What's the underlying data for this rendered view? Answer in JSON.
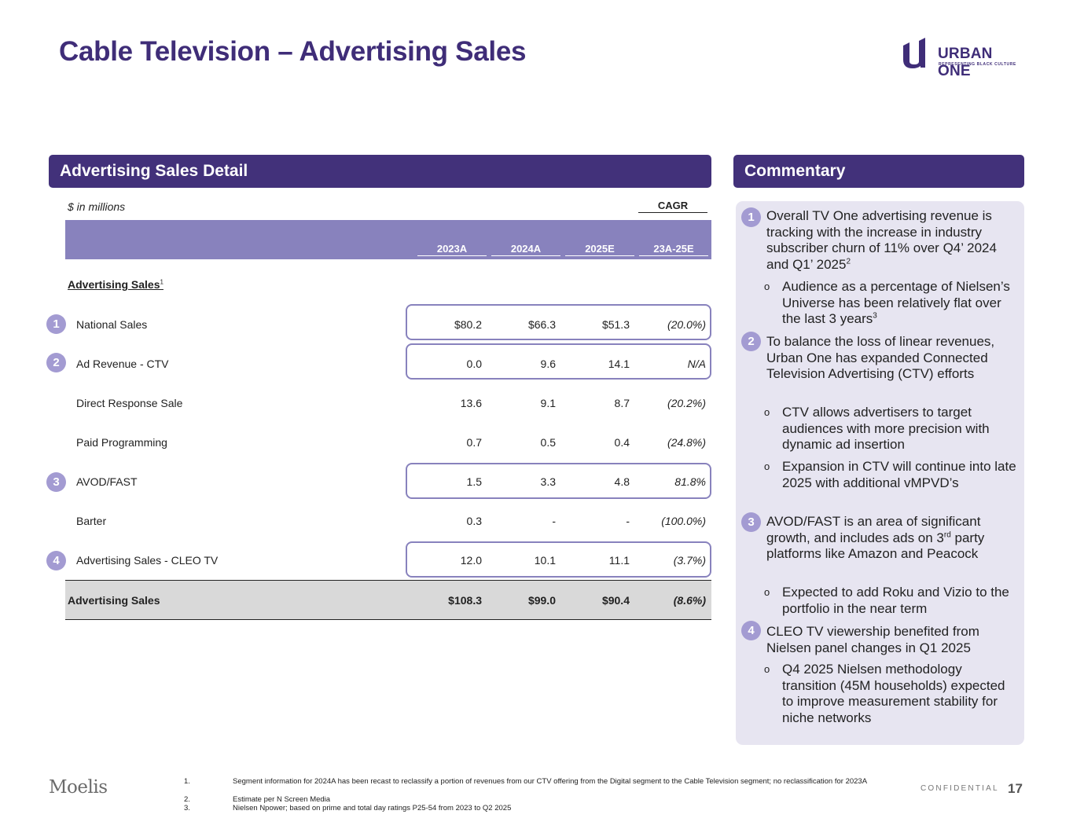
{
  "title": "Cable Television – Advertising Sales",
  "logo": {
    "word": "URBAN ONE",
    "tagline": "REPRESENTING BLACK CULTURE"
  },
  "table": {
    "header": "Advertising Sales Detail",
    "units": "$ in millions",
    "cagr_label": "CAGR",
    "columns": [
      "2023A",
      "2024A",
      "2025E",
      "23A-25E"
    ],
    "section_label": "Advertising Sales",
    "section_note": "1",
    "rows": [
      {
        "badge": "1",
        "label": "National Sales",
        "values": [
          "$80.2",
          "$66.3",
          "$51.3",
          "(20.0%)"
        ]
      },
      {
        "badge": "2",
        "label": "Ad Revenue - CTV",
        "values": [
          "0.0",
          "9.6",
          "14.1",
          "N/A"
        ]
      },
      {
        "badge": "",
        "label": "Direct Response Sale",
        "values": [
          "13.6",
          "9.1",
          "8.7",
          "(20.2%)"
        ]
      },
      {
        "badge": "",
        "label": "Paid Programming",
        "values": [
          "0.7",
          "0.5",
          "0.4",
          "(24.8%)"
        ]
      },
      {
        "badge": "3",
        "label": "AVOD/FAST",
        "values": [
          "1.5",
          "3.3",
          "4.8",
          "81.8%"
        ]
      },
      {
        "badge": "",
        "label": "Barter",
        "values": [
          "0.3",
          "-",
          "-",
          "(100.0%)"
        ]
      },
      {
        "badge": "4",
        "label": "Advertising Sales - CLEO TV",
        "values": [
          "12.0",
          "10.1",
          "11.1",
          "(3.7%)"
        ]
      }
    ],
    "total": {
      "label": "Advertising Sales",
      "values": [
        "$108.3",
        "$99.0",
        "$90.4",
        "(8.6%)"
      ]
    }
  },
  "commentary": {
    "header": "Commentary",
    "items": [
      {
        "badge": "1",
        "text": "Overall TV One advertising revenue is tracking with the increase in industry subscriber churn of 11% over Q4’ 2024 and Q1’ 2025",
        "sup": "2",
        "subs": [
          {
            "text": "Audience as a percentage of Nielsen’s Universe has been relatively flat over the last 3 years",
            "sup": "3"
          }
        ]
      },
      {
        "badge": "2",
        "text": "To balance the loss of linear revenues, Urban One has expanded Connected Television Advertising (CTV) efforts",
        "sup": "",
        "subs": [
          {
            "text": "CTV allows advertisers to target audiences with more precision with dynamic ad insertion",
            "sup": ""
          },
          {
            "text": "Expansion in CTV will continue into late 2025 with additional vMPVD’s",
            "sup": ""
          }
        ]
      },
      {
        "badge": "3",
        "text_a": "AVOD/FAST is an area of significant growth, and includes ads on 3",
        "text_sup": "rd",
        "text_b": " party platforms like Amazon and Peacock",
        "subs": [
          {
            "text": "Expected to add Roku and Vizio to the portfolio in the near term",
            "sup": ""
          }
        ]
      },
      {
        "badge": "4",
        "text": "CLEO TV viewership benefited from Nielsen panel changes in Q1 2025",
        "sup": "",
        "subs": [
          {
            "text": "Q4 2025 Nielsen methodology transition (45M households) expected to improve measurement stability for niche networks",
            "sup": ""
          }
        ]
      }
    ]
  },
  "footer": {
    "brand": "Moelis",
    "footnotes": [
      {
        "num": "1.",
        "text": "Segment information for 2024A has been recast to reclassify a portion of revenues from our CTV offering from the Digital segment to the Cable Television segment; no reclassification for 2023A"
      },
      {
        "num": "2.",
        "text": "Estimate per N Screen Media"
      },
      {
        "num": "3.",
        "text": "Nielsen Npower; based on prime and total day ratings P25-54 from 2023 to Q2 2025"
      }
    ],
    "confidential": "CONFIDENTIAL",
    "page": "17"
  }
}
